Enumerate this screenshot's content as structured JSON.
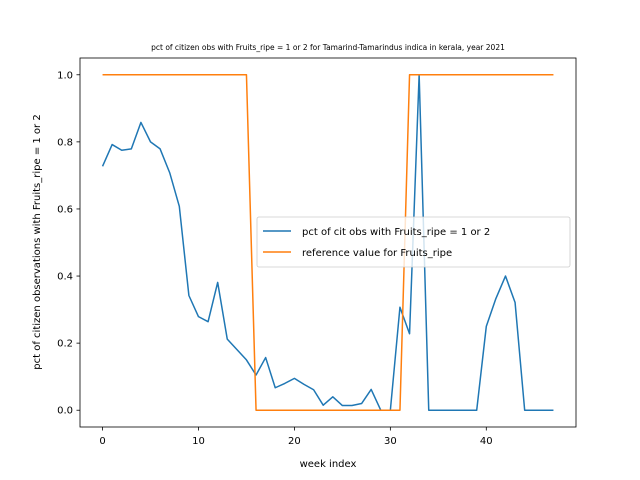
{
  "chart_data": {
    "type": "line",
    "title": "pct of citizen obs with Fruits_ripe = 1 or 2 for Tamarind-Tamarindus indica in kerala, year 2021",
    "xlabel": "week index",
    "ylabel": "pct of citizen observations with Fruits_ripe = 1 or 2",
    "xlim": [
      -2.35,
      49.35
    ],
    "ylim": [
      -0.05,
      1.05
    ],
    "xticks": [
      0,
      10,
      20,
      30,
      40
    ],
    "yticks": [
      0.0,
      0.2,
      0.4,
      0.6,
      0.8,
      1.0
    ],
    "ytick_labels": [
      "0.0",
      "0.2",
      "0.4",
      "0.6",
      "0.8",
      "1.0"
    ],
    "grid": false,
    "legend_position": "center-right",
    "series": [
      {
        "name": "pct of cit obs with Fruits_ripe = 1 or 2",
        "color": "#1f77b4",
        "x": [
          0,
          1,
          2,
          3,
          4,
          5,
          6,
          7,
          8,
          9,
          10,
          11,
          12,
          13,
          14,
          15,
          16,
          17,
          18,
          19,
          20,
          21,
          22,
          23,
          24,
          25,
          26,
          27,
          28,
          29,
          30,
          31,
          32,
          33,
          34,
          35,
          36,
          37,
          38,
          39,
          40,
          41,
          42,
          43,
          44,
          45,
          46,
          47
        ],
        "values": [
          0.727,
          0.792,
          0.775,
          0.779,
          0.858,
          0.8,
          0.779,
          0.708,
          0.608,
          0.342,
          0.279,
          0.264,
          0.381,
          0.212,
          0.181,
          0.15,
          0.105,
          0.157,
          0.067,
          0.08,
          0.095,
          0.077,
          0.061,
          0.015,
          0.04,
          0.014,
          0.014,
          0.02,
          0.062,
          0.0,
          0.0,
          0.307,
          0.228,
          1.0,
          0.0,
          0.0,
          0.0,
          0.0,
          0.0,
          0.0,
          0.25,
          0.333,
          0.4,
          0.321,
          0.0,
          0.0,
          0.0,
          0.0
        ]
      },
      {
        "name": "reference value for Fruits_ripe",
        "color": "#ff7f0e",
        "x": [
          0,
          15,
          16,
          31,
          32,
          47
        ],
        "values": [
          1,
          1,
          0,
          0,
          1,
          1
        ]
      }
    ]
  }
}
